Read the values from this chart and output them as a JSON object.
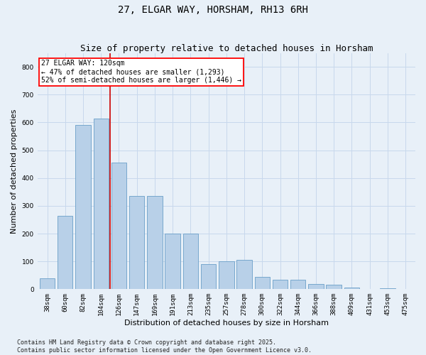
{
  "title": "27, ELGAR WAY, HORSHAM, RH13 6RH",
  "subtitle": "Size of property relative to detached houses in Horsham",
  "xlabel": "Distribution of detached houses by size in Horsham",
  "ylabel": "Number of detached properties",
  "categories": [
    "38sqm",
    "60sqm",
    "82sqm",
    "104sqm",
    "126sqm",
    "147sqm",
    "169sqm",
    "191sqm",
    "213sqm",
    "235sqm",
    "257sqm",
    "278sqm",
    "300sqm",
    "322sqm",
    "344sqm",
    "366sqm",
    "388sqm",
    "409sqm",
    "431sqm",
    "453sqm",
    "475sqm"
  ],
  "values": [
    40,
    265,
    590,
    615,
    455,
    335,
    335,
    200,
    200,
    90,
    100,
    105,
    45,
    35,
    35,
    20,
    15,
    5,
    2,
    3,
    2
  ],
  "bar_color": "#b8d0e8",
  "bar_edgecolor": "#6a9fc8",
  "grid_color": "#c8d8ec",
  "bg_color": "#e8f0f8",
  "vline_x": 3.5,
  "vline_color": "#cc0000",
  "annotation_box_text": "27 ELGAR WAY: 120sqm\n← 47% of detached houses are smaller (1,293)\n52% of semi-detached houses are larger (1,446) →",
  "footer_line1": "Contains HM Land Registry data © Crown copyright and database right 2025.",
  "footer_line2": "Contains public sector information licensed under the Open Government Licence v3.0.",
  "ylim": [
    0,
    850
  ],
  "yticks": [
    0,
    100,
    200,
    300,
    400,
    500,
    600,
    700,
    800
  ],
  "title_fontsize": 10,
  "subtitle_fontsize": 9,
  "tick_fontsize": 6.5,
  "label_fontsize": 8,
  "footer_fontsize": 6,
  "annot_fontsize": 7
}
